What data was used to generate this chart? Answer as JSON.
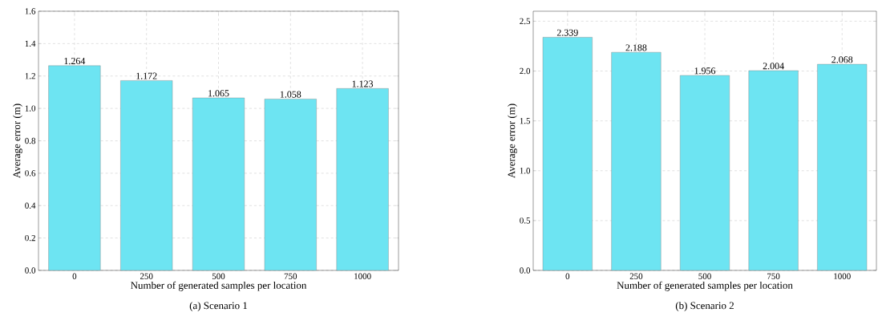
{
  "chart_data": [
    {
      "type": "bar",
      "categories": [
        "0",
        "250",
        "500",
        "750",
        "1000"
      ],
      "values": [
        1.264,
        1.172,
        1.065,
        1.058,
        1.123
      ],
      "color": "#6de4f2",
      "xlabel": "Number of generated samples per location",
      "ylabel": "Average error (m)",
      "ylim": [
        0,
        1.6
      ],
      "yticks": [
        {
          "value": 0,
          "label": "0.0"
        },
        0.2,
        0.4,
        0.6,
        0.8,
        {
          "value": 1,
          "label": "1.0"
        },
        1.2,
        1.4,
        1.6
      ],
      "grid": true,
      "data_labels": true,
      "annotations": [
        "(a)  Scenario 1"
      ]
    },
    {
      "type": "bar",
      "categories": [
        "0",
        "250",
        "500",
        "750",
        "1000"
      ],
      "values": [
        2.339,
        2.188,
        1.956,
        2.004,
        2.068
      ],
      "color": "#6de4f2",
      "xlabel": "Number of generated samples per location",
      "ylabel": "Average error (m)",
      "ylim": [
        0,
        2.6
      ],
      "yticks": [
        {
          "value": 0,
          "label": "0.0"
        },
        0.5,
        {
          "value": 1,
          "label": "1.0"
        },
        1.5,
        {
          "value": 2,
          "label": "2.0"
        },
        2.5
      ],
      "grid": true,
      "data_labels": true,
      "annotations": [
        "(b)  Scenario 2"
      ]
    }
  ]
}
